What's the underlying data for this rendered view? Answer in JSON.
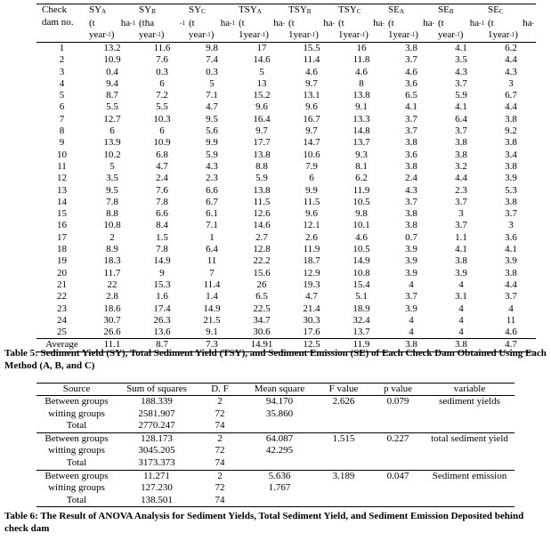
{
  "table5": {
    "first_header": [
      "Check",
      "dam no."
    ],
    "columns": [
      {
        "name": "SY",
        "sub": "A",
        "l2a": "(t",
        "l2b": "ha",
        "l2sup": "-1",
        "l3": "year",
        "l3sup": "-1",
        "l3end": ")"
      },
      {
        "name": "SY",
        "sub": "B",
        "l2a": "(tha",
        "l2b": "",
        "l2sup": "-1",
        "l3": "year",
        "l3sup": "-1",
        "l3end": ")"
      },
      {
        "name": "SY",
        "sub": "C",
        "l2a": "(t",
        "l2b": "ha",
        "l2sup": "-1",
        "l3": "year",
        "l3sup": "-1",
        "l3end": ")"
      },
      {
        "name": "TSY",
        "sub": "A",
        "l2a": "(t",
        "l2b": "ha",
        "l2sup": "-",
        "l3": "1year",
        "l3sup": "-1",
        "l3end": ")"
      },
      {
        "name": "TSY",
        "sub": "B",
        "l2a": "(t",
        "l2b": "ha",
        "l2sup": "-",
        "l3": "1year",
        "l3sup": "-1",
        "l3end": ")"
      },
      {
        "name": "TSY",
        "sub": "C",
        "l2a": "(t",
        "l2b": "ha",
        "l2sup": "-",
        "l3": "1year",
        "l3sup": "-1",
        "l3end": ")"
      },
      {
        "name": "SE",
        "sub": "A",
        "l2a": "(t",
        "l2b": "ha",
        "l2sup": "-",
        "l3": "1year",
        "l3sup": "-1",
        "l3end": ")"
      },
      {
        "name": "SE",
        "sub": "B",
        "l2a": "(t",
        "l2b": "ha",
        "l2sup": "-1",
        "l3": "year",
        "l3sup": "-1",
        "l3end": ")"
      },
      {
        "name": "SE",
        "sub": "C",
        "l2a": "(t",
        "l2b": "ha",
        "l2sup": "-",
        "l3": "1year",
        "l3sup": "-1",
        "l3end": ")"
      }
    ],
    "rows": [
      [
        "1",
        "13.2",
        "11.6",
        "9.8",
        "17",
        "15.5",
        "16",
        "3.8",
        "4.1",
        "6.2"
      ],
      [
        "2",
        "10.9",
        "7.6",
        "7.4",
        "14.6",
        "11.4",
        "11.8",
        "3.7",
        "3.5",
        "4.4"
      ],
      [
        "3",
        "0.4",
        "0.3",
        "0.3",
        "5",
        "4.6",
        "4.6",
        "4.6",
        "4.3",
        "4.3"
      ],
      [
        "4",
        "9.4",
        "6",
        "5",
        "13",
        "9.7",
        "8",
        "3.6",
        "3.7",
        "3"
      ],
      [
        "5",
        "8.7",
        "7.2",
        "7.1",
        "15.2",
        "13.1",
        "13.8",
        "6.5",
        "5.9",
        "6.7"
      ],
      [
        "6",
        "5.5",
        "5.5",
        "4.7",
        "9.6",
        "9.6",
        "9.1",
        "4.1",
        "4.1",
        "4.4"
      ],
      [
        "7",
        "12.7",
        "10.3",
        "9.5",
        "16.4",
        "16.7",
        "13.3",
        "3.7",
        "6.4",
        "3.8"
      ],
      [
        "8",
        "6",
        "6",
        "5.6",
        "9.7",
        "9.7",
        "14.8",
        "3.7",
        "3.7",
        "9.2"
      ],
      [
        "9",
        "13.9",
        "10.9",
        "9.9",
        "17.7",
        "14.7",
        "13.7",
        "3.8",
        "3.8",
        "3.8"
      ],
      [
        "10",
        "10.2",
        "6.8",
        "5.9",
        "13.8",
        "10.6",
        "9.3",
        "3.6",
        "3.8",
        "3.4"
      ],
      [
        "11",
        "5",
        "4.7",
        "4.3",
        "8.8",
        "7.9",
        "8.1",
        "3.8",
        "3.2",
        "3.8"
      ],
      [
        "12",
        "3.5",
        "2.4",
        "2.3",
        "5.9",
        "6",
        "6.2",
        "2.4",
        "4.4",
        "3.9"
      ],
      [
        "13",
        "9.5",
        "7.6",
        "6.6",
        "13.8",
        "9.9",
        "11.9",
        "4.3",
        "2.3",
        "5.3"
      ],
      [
        "14",
        "7.8",
        "7.8",
        "6.7",
        "11.5",
        "11.5",
        "10.5",
        "3.7",
        "3.7",
        "3.8"
      ],
      [
        "15",
        "8.8",
        "6.6",
        "6.1",
        "12.6",
        "9.6",
        "9.8",
        "3.8",
        "3",
        "3.7"
      ],
      [
        "16",
        "10.8",
        "8.4",
        "7.1",
        "14.6",
        "12.1",
        "10.1",
        "3.8",
        "3.7",
        "3"
      ],
      [
        "17",
        "2",
        "1.5",
        "1",
        "2.7",
        "2.6",
        "4.6",
        "0.7",
        "1.1",
        "3.6"
      ],
      [
        "18",
        "8.9",
        "7.8",
        "6.4",
        "12.8",
        "11.9",
        "10.5",
        "3.9",
        "4.1",
        "4.1"
      ],
      [
        "19",
        "18.3",
        "14.9",
        "11",
        "22.2",
        "18.7",
        "14.9",
        "3.9",
        "3.8",
        "3.9"
      ],
      [
        "20",
        "11.7",
        "9",
        "7",
        "15.6",
        "12.9",
        "10.8",
        "3.9",
        "3.9",
        "3.8"
      ],
      [
        "21",
        "22",
        "15.3",
        "11.4",
        "26",
        "19.3",
        "15.4",
        "4",
        "4",
        "4.4"
      ],
      [
        "22",
        "2.8",
        "1.6",
        "1.4",
        "6.5",
        "4.7",
        "5.1",
        "3.7",
        "3.1",
        "3.7"
      ],
      [
        "23",
        "18.6",
        "17.4",
        "14.9",
        "22.5",
        "21.4",
        "18.9",
        "3.9",
        "4",
        "4"
      ],
      [
        "24",
        "30.7",
        "26.3",
        "21.5",
        "34.7",
        "30.3",
        "32.4",
        "4",
        "4",
        "11"
      ],
      [
        "25",
        "26.6",
        "13.6",
        "9.1",
        "30.6",
        "17.6",
        "13.7",
        "4",
        "4",
        "4.6"
      ]
    ],
    "average": [
      "Average",
      "11.1",
      "8.7",
      "7.3",
      "14.91",
      "12.5",
      "11.9",
      "3.8",
      "3.8",
      "4.7"
    ],
    "caption": "Table 5: Sediment Yield (SY), Total Sediment Yield (TSY), and Sediment Emission (SE) of Each Check Dam Obtained Using Each Method (A, B, and C)"
  },
  "table6": {
    "headers": [
      "Source",
      "Sum of squares",
      "D. F",
      "Mean square",
      "F value",
      "p value",
      "variable"
    ],
    "groups": [
      {
        "variable": "sediment yields",
        "rows": [
          [
            "Between groups",
            "188.339",
            "2",
            "94.170",
            "2.626",
            "0.079"
          ],
          [
            "witting groups",
            "2581.907",
            "72",
            "35.860",
            "",
            ""
          ],
          [
            "Total",
            "2770.247",
            "74",
            "",
            "",
            ""
          ]
        ]
      },
      {
        "variable": "total sediment yield",
        "rows": [
          [
            "Between groups",
            "128.173",
            "2",
            "64.087",
            "1.515",
            "0.227"
          ],
          [
            "witting groups",
            "3045.205",
            "72",
            "42.295",
            "",
            ""
          ],
          [
            "Total",
            "3173.373",
            "74",
            "",
            "",
            ""
          ]
        ]
      },
      {
        "variable": "Sediment emission",
        "rows": [
          [
            "Between groups",
            "11.271",
            "2",
            "5.636",
            "3.189",
            "0.047"
          ],
          [
            "witting groups",
            "127.230",
            "72",
            "1.767",
            "",
            ""
          ],
          [
            "Total",
            "138.501",
            "74",
            "",
            "",
            ""
          ]
        ]
      }
    ],
    "caption": "Table 6: The Result of ANOVA Analysis for Sediment Yields, Total Sediment Yield, and Sediment Emission Deposited behind check dam"
  }
}
